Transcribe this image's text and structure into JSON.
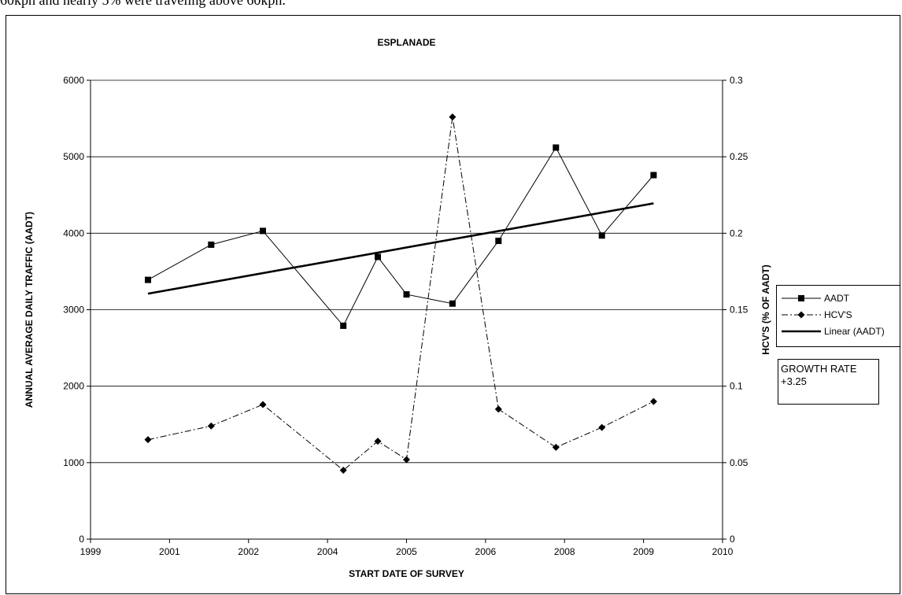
{
  "top_text": "60kph and nearly 5% were traveling above 60kph.",
  "growth_box": {
    "line1": "GROWTH RATE",
    "line2": "+3.25"
  },
  "chart_data": {
    "type": "line",
    "title": "ESPLANADE",
    "xlabel": "START DATE OF SURVEY",
    "ylabel": "ANNUAL AVERAGE DAILY TRAFFIC (AADT)",
    "y2label": "HCV'S (% OF AADT)",
    "xlim": [
      1999,
      2010
    ],
    "ylim": [
      0,
      6000
    ],
    "y2lim": [
      0,
      0.3
    ],
    "x_ticks": [
      "1999",
      "2001",
      "2002",
      "2004",
      "2005",
      "2006",
      "2008",
      "2009",
      "2010"
    ],
    "y_ticks": [
      0,
      1000,
      2000,
      3000,
      4000,
      5000,
      6000
    ],
    "y2_ticks": [
      "0",
      "0.05",
      "0.1",
      "0.15",
      "0.2",
      "0.25",
      "0.3"
    ],
    "grid": true,
    "legend_position": "right",
    "series": [
      {
        "name": "AADT",
        "axis": "left",
        "style": "solid",
        "marker": "square",
        "x": [
          2000.0,
          2001.1,
          2002.0,
          2003.4,
          2004.0,
          2004.5,
          2005.3,
          2006.1,
          2007.1,
          2007.9,
          2008.8
        ],
        "y": [
          3390,
          3850,
          4030,
          2790,
          3690,
          3200,
          3080,
          3900,
          5120,
          3970,
          4760
        ]
      },
      {
        "name": "HCV'S",
        "axis": "right",
        "style": "dashdot",
        "marker": "diamond",
        "x": [
          2000.0,
          2001.1,
          2002.0,
          2003.4,
          2004.0,
          2004.5,
          2005.3,
          2006.1,
          2007.1,
          2007.9,
          2008.8
        ],
        "y": [
          0.065,
          0.074,
          0.088,
          0.045,
          0.064,
          0.052,
          0.276,
          0.085,
          0.06,
          0.073,
          0.09
        ]
      },
      {
        "name": "Linear (AADT)",
        "axis": "left",
        "style": "thick",
        "marker": "none",
        "x": [
          2000.0,
          2008.8
        ],
        "y": [
          3210,
          4390
        ]
      }
    ]
  }
}
